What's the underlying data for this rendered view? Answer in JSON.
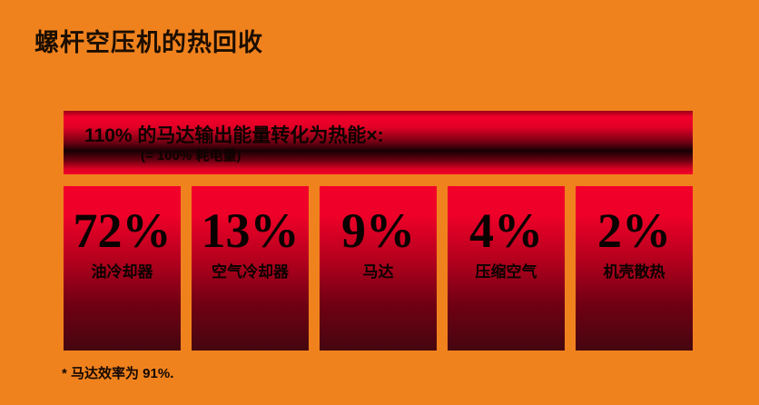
{
  "slide": {
    "title": "螺杆空压机的热回收",
    "banner": {
      "line1": "110% 的马达输出能量转化为热能×:",
      "line2": "(= 100% 耗电量)"
    },
    "boxes": [
      {
        "percent": "72%",
        "label": "油冷却器"
      },
      {
        "percent": "13%",
        "label": "空气冷却器"
      },
      {
        "percent": "9%",
        "label": "马达"
      },
      {
        "percent": "4%",
        "label": "压缩空气"
      },
      {
        "percent": "2%",
        "label": "机壳散热"
      }
    ],
    "footnote": "* 马达效率为 91%.",
    "colors": {
      "background_orange": "#F0821E",
      "bright_red": "#F2002A",
      "dark_maroon": "#45060F",
      "banner_dark_band": "#160004",
      "text_black": "#0A0200"
    }
  },
  "chart_data": {
    "type": "table",
    "title": "螺杆空压机的热回收",
    "categories": [
      "油冷却器",
      "空气冷却器",
      "马达",
      "压缩空气",
      "机壳散热"
    ],
    "values": [
      72,
      13,
      9,
      4,
      2
    ],
    "unit": "%",
    "total_note": "110% 的马达输出能量转化为热能×: (= 100% 耗电量)",
    "footnote": "* 马达效率为 91%.",
    "legend_position": "none",
    "grid": false
  }
}
